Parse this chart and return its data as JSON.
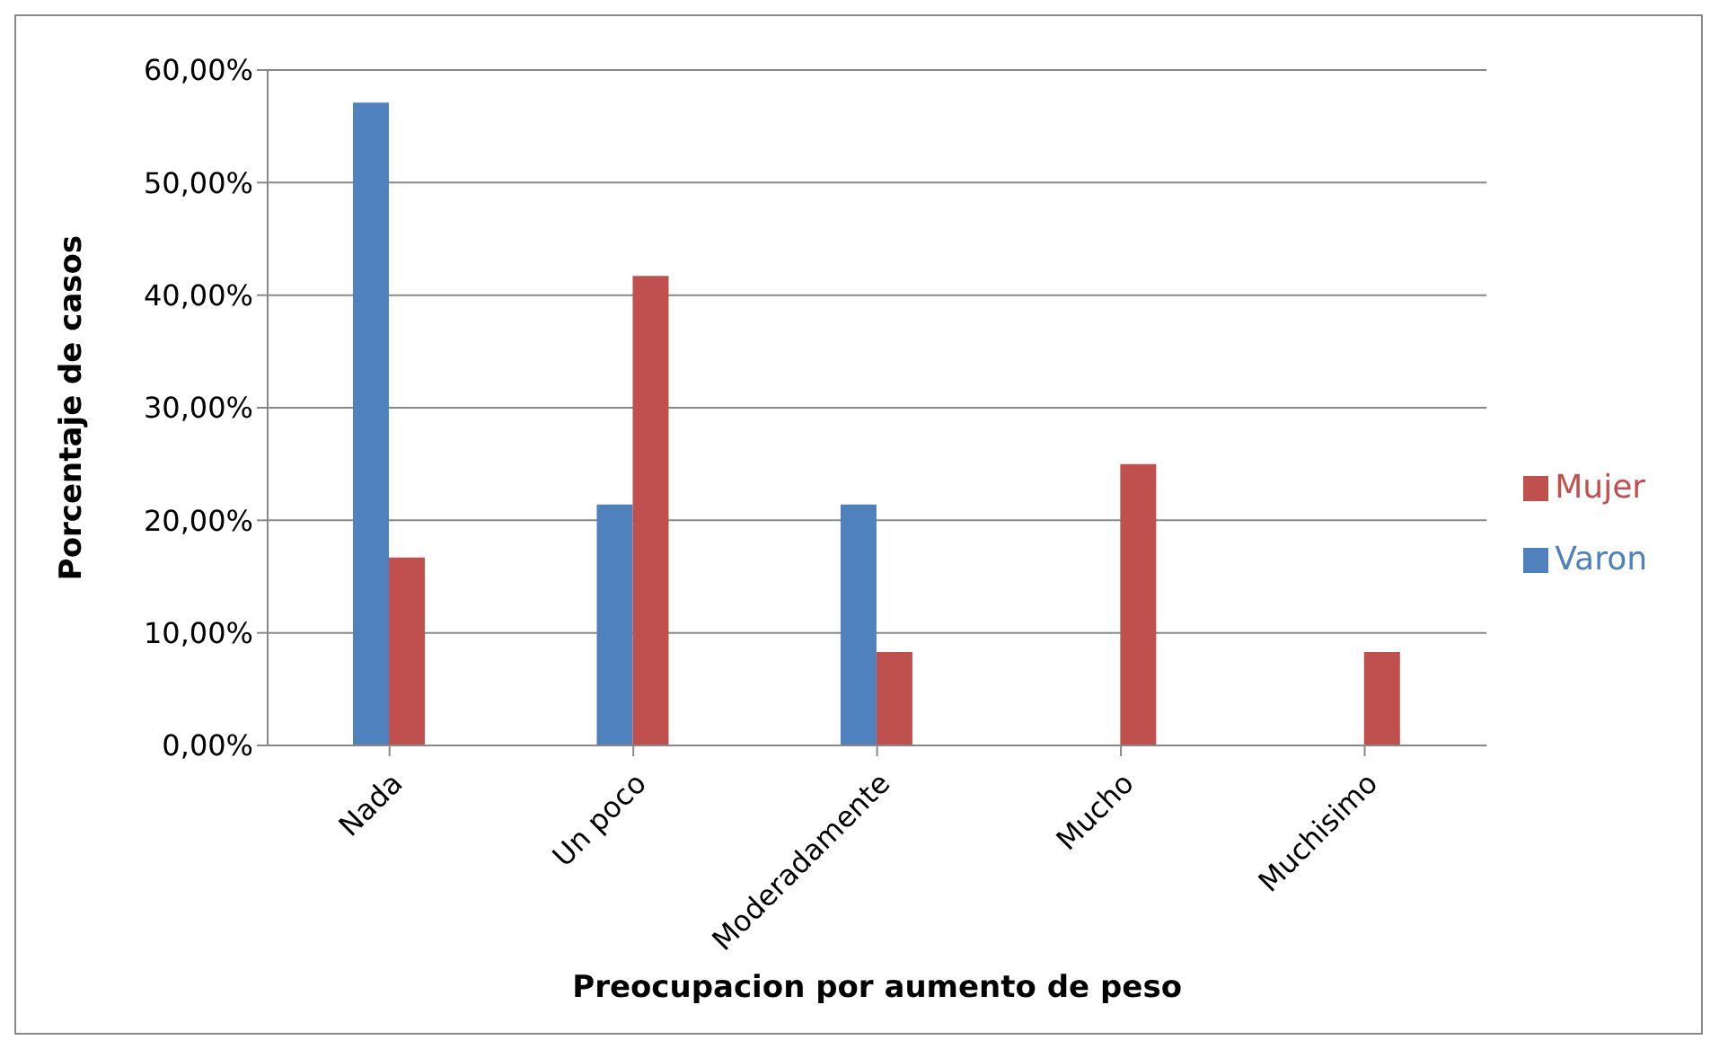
{
  "chart_data": {
    "type": "bar",
    "xlabel": "Preocupacion por aumento de peso",
    "ylabel": "Porcentaje de casos",
    "categories": [
      "Nada",
      "Un poco",
      "Moderadamente",
      "Mucho",
      "Muchisimo"
    ],
    "series": [
      {
        "name": "Varon",
        "color": "#4f81bd",
        "values": [
          57.1,
          21.4,
          21.4,
          0,
          0
        ]
      },
      {
        "name": "Mujer",
        "color": "#c0504d",
        "values": [
          16.7,
          41.7,
          8.3,
          25,
          8.3
        ]
      }
    ],
    "ylim": [
      0,
      60
    ],
    "yticks": [
      {
        "value": 0,
        "label": "0,00%"
      },
      {
        "value": 10,
        "label": "10,00%"
      },
      {
        "value": 20,
        "label": "20,00%"
      },
      {
        "value": 30,
        "label": "30,00%"
      },
      {
        "value": 40,
        "label": "40,00%"
      },
      {
        "value": 50,
        "label": "50,00%"
      },
      {
        "value": 60,
        "label": "60,00%"
      }
    ],
    "grid": "y",
    "legend": "right"
  }
}
